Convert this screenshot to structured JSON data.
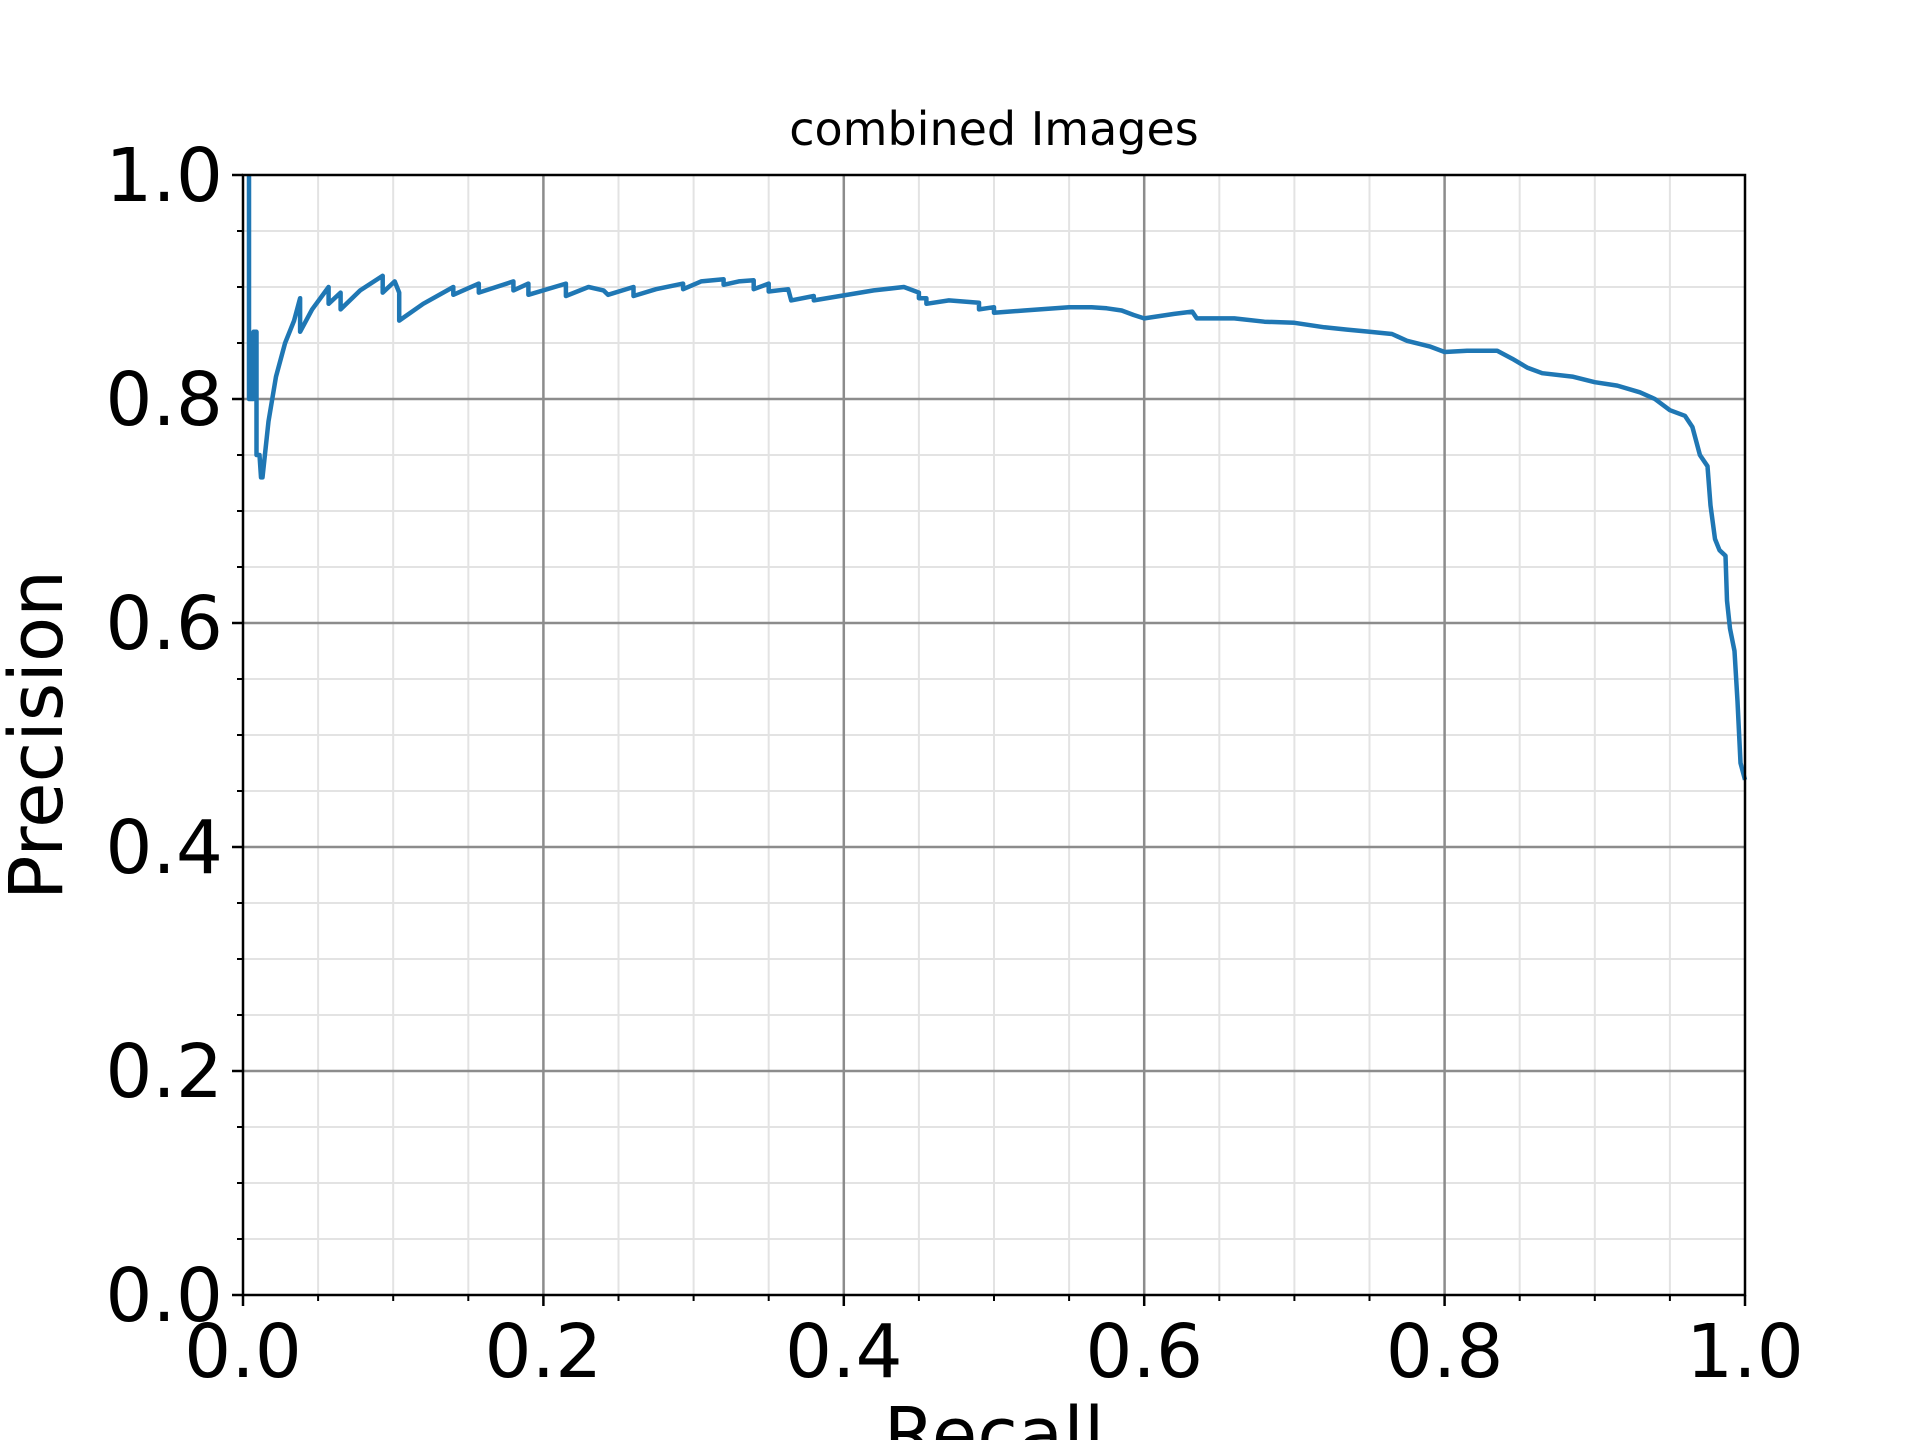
{
  "chart_data": {
    "type": "line",
    "title": "combined Images",
    "xlabel": "Recall",
    "ylabel": "Precision",
    "xlim": [
      0,
      1
    ],
    "ylim": [
      0,
      1
    ],
    "xticks": [
      "0.0",
      "0.2",
      "0.4",
      "0.6",
      "0.8",
      "1.0"
    ],
    "yticks": [
      "0.0",
      "0.2",
      "0.4",
      "0.6",
      "0.8",
      "1.0"
    ],
    "grid": {
      "major": true,
      "minor": true
    },
    "colors": {
      "series": "#1f77b4",
      "major_grid": "#8c8c8c",
      "minor_grid": "#e3e3e3"
    },
    "series": [
      {
        "points": [
          [
            0.004,
            1.0
          ],
          [
            0.004,
            0.8
          ],
          [
            0.007,
            0.8
          ],
          [
            0.007,
            0.86
          ],
          [
            0.009,
            0.86
          ],
          [
            0.009,
            0.75
          ],
          [
            0.011,
            0.75
          ],
          [
            0.012,
            0.73
          ],
          [
            0.013,
            0.73
          ],
          [
            0.017,
            0.78
          ],
          [
            0.022,
            0.82
          ],
          [
            0.028,
            0.85
          ],
          [
            0.034,
            0.87
          ],
          [
            0.038,
            0.89
          ],
          [
            0.038,
            0.86
          ],
          [
            0.046,
            0.88
          ],
          [
            0.057,
            0.9
          ],
          [
            0.057,
            0.885
          ],
          [
            0.065,
            0.895
          ],
          [
            0.065,
            0.88
          ],
          [
            0.078,
            0.897
          ],
          [
            0.093,
            0.91
          ],
          [
            0.093,
            0.895
          ],
          [
            0.101,
            0.905
          ],
          [
            0.104,
            0.895
          ],
          [
            0.104,
            0.87
          ],
          [
            0.12,
            0.885
          ],
          [
            0.14,
            0.9
          ],
          [
            0.14,
            0.893
          ],
          [
            0.157,
            0.903
          ],
          [
            0.157,
            0.895
          ],
          [
            0.18,
            0.905
          ],
          [
            0.18,
            0.897
          ],
          [
            0.19,
            0.903
          ],
          [
            0.19,
            0.893
          ],
          [
            0.215,
            0.903
          ],
          [
            0.215,
            0.892
          ],
          [
            0.23,
            0.9
          ],
          [
            0.24,
            0.897
          ],
          [
            0.243,
            0.893
          ],
          [
            0.26,
            0.9
          ],
          [
            0.26,
            0.892
          ],
          [
            0.275,
            0.898
          ],
          [
            0.293,
            0.903
          ],
          [
            0.293,
            0.898
          ],
          [
            0.305,
            0.905
          ],
          [
            0.32,
            0.907
          ],
          [
            0.32,
            0.902
          ],
          [
            0.33,
            0.905
          ],
          [
            0.34,
            0.906
          ],
          [
            0.34,
            0.898
          ],
          [
            0.35,
            0.903
          ],
          [
            0.35,
            0.896
          ],
          [
            0.363,
            0.898
          ],
          [
            0.365,
            0.888
          ],
          [
            0.38,
            0.892
          ],
          [
            0.38,
            0.888
          ],
          [
            0.42,
            0.897
          ],
          [
            0.44,
            0.9
          ],
          [
            0.45,
            0.895
          ],
          [
            0.45,
            0.89
          ],
          [
            0.455,
            0.89
          ],
          [
            0.455,
            0.885
          ],
          [
            0.47,
            0.888
          ],
          [
            0.49,
            0.886
          ],
          [
            0.49,
            0.88
          ],
          [
            0.5,
            0.882
          ],
          [
            0.5,
            0.877
          ],
          [
            0.52,
            0.879
          ],
          [
            0.55,
            0.882
          ],
          [
            0.565,
            0.882
          ],
          [
            0.575,
            0.881
          ],
          [
            0.585,
            0.879
          ],
          [
            0.593,
            0.875
          ],
          [
            0.6,
            0.872
          ],
          [
            0.62,
            0.876
          ],
          [
            0.632,
            0.878
          ],
          [
            0.635,
            0.872
          ],
          [
            0.65,
            0.872
          ],
          [
            0.66,
            0.872
          ],
          [
            0.68,
            0.869
          ],
          [
            0.7,
            0.868
          ],
          [
            0.72,
            0.864
          ],
          [
            0.735,
            0.862
          ],
          [
            0.75,
            0.86
          ],
          [
            0.765,
            0.858
          ],
          [
            0.775,
            0.852
          ],
          [
            0.79,
            0.847
          ],
          [
            0.8,
            0.842
          ],
          [
            0.815,
            0.843
          ],
          [
            0.835,
            0.843
          ],
          [
            0.845,
            0.836
          ],
          [
            0.855,
            0.828
          ],
          [
            0.865,
            0.823
          ],
          [
            0.885,
            0.82
          ],
          [
            0.9,
            0.815
          ],
          [
            0.915,
            0.812
          ],
          [
            0.93,
            0.806
          ],
          [
            0.94,
            0.8
          ],
          [
            0.95,
            0.79
          ],
          [
            0.96,
            0.785
          ],
          [
            0.965,
            0.775
          ],
          [
            0.97,
            0.75
          ],
          [
            0.975,
            0.74
          ],
          [
            0.977,
            0.705
          ],
          [
            0.98,
            0.675
          ],
          [
            0.983,
            0.665
          ],
          [
            0.987,
            0.66
          ],
          [
            0.988,
            0.62
          ],
          [
            0.99,
            0.595
          ],
          [
            0.993,
            0.575
          ],
          [
            0.995,
            0.53
          ],
          [
            0.997,
            0.475
          ],
          [
            1.0,
            0.46
          ]
        ]
      }
    ]
  }
}
